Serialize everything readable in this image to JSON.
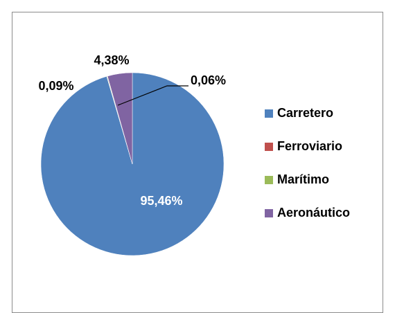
{
  "chart_data": {
    "type": "pie",
    "categories": [
      "Carretero",
      "Ferroviario",
      "Marítimo",
      "Aeronáutico"
    ],
    "values": [
      95.46,
      0.06,
      0.09,
      4.38
    ],
    "value_labels": [
      "95,46%",
      "0,06%",
      "0,09%",
      "4,38%"
    ],
    "colors": [
      "#4f81bd",
      "#c0504d",
      "#9bbb59",
      "#8064a2"
    ],
    "legend": "right"
  }
}
